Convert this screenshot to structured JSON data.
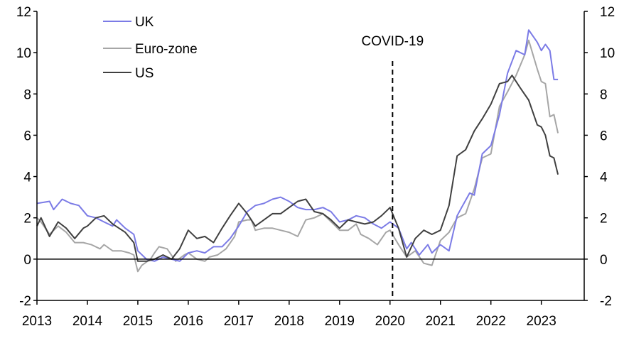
{
  "chart_data": {
    "type": "line",
    "title": "",
    "xlabel": "",
    "ylabel": "",
    "xlim": [
      2013,
      2023.85
    ],
    "ylim": [
      -2,
      12
    ],
    "x_ticks": [
      "2013",
      "2014",
      "2015",
      "2016",
      "2017",
      "2018",
      "2019",
      "2020",
      "2021",
      "2022",
      "2023"
    ],
    "y_ticks_left": [
      "-2",
      "0",
      "2",
      "4",
      "6",
      "8",
      "10",
      "12"
    ],
    "y_ticks_right": [
      "-2",
      "0",
      "2",
      "4",
      "6",
      "8",
      "10",
      "12"
    ],
    "grid": false,
    "legend_position": "top-left",
    "annotation": {
      "label": "COVID-19",
      "x": 2020.05
    },
    "series": [
      {
        "name": "UK",
        "color": "#7b7be6",
        "points": [
          [
            2013.0,
            2.7
          ],
          [
            2013.25,
            2.8
          ],
          [
            2013.33,
            2.4
          ],
          [
            2013.5,
            2.9
          ],
          [
            2013.67,
            2.7
          ],
          [
            2013.83,
            2.6
          ],
          [
            2014.0,
            2.1
          ],
          [
            2014.17,
            2.0
          ],
          [
            2014.33,
            1.8
          ],
          [
            2014.5,
            1.6
          ],
          [
            2014.58,
            1.9
          ],
          [
            2014.75,
            1.5
          ],
          [
            2014.92,
            1.2
          ],
          [
            2015.0,
            0.4
          ],
          [
            2015.17,
            0.0
          ],
          [
            2015.33,
            -0.1
          ],
          [
            2015.5,
            0.1
          ],
          [
            2015.67,
            0.0
          ],
          [
            2015.83,
            -0.1
          ],
          [
            2016.0,
            0.3
          ],
          [
            2016.17,
            0.4
          ],
          [
            2016.33,
            0.3
          ],
          [
            2016.5,
            0.6
          ],
          [
            2016.67,
            0.6
          ],
          [
            2016.83,
            1.0
          ],
          [
            2017.0,
            1.6
          ],
          [
            2017.17,
            2.3
          ],
          [
            2017.33,
            2.6
          ],
          [
            2017.5,
            2.7
          ],
          [
            2017.67,
            2.9
          ],
          [
            2017.83,
            3.0
          ],
          [
            2018.0,
            2.8
          ],
          [
            2018.17,
            2.5
          ],
          [
            2018.33,
            2.4
          ],
          [
            2018.5,
            2.4
          ],
          [
            2018.67,
            2.5
          ],
          [
            2018.83,
            2.3
          ],
          [
            2019.0,
            1.8
          ],
          [
            2019.17,
            1.9
          ],
          [
            2019.33,
            2.1
          ],
          [
            2019.5,
            2.0
          ],
          [
            2019.67,
            1.7
          ],
          [
            2019.83,
            1.5
          ],
          [
            2020.0,
            1.8
          ],
          [
            2020.17,
            1.5
          ],
          [
            2020.33,
            0.5
          ],
          [
            2020.42,
            0.8
          ],
          [
            2020.58,
            0.2
          ],
          [
            2020.75,
            0.7
          ],
          [
            2020.83,
            0.3
          ],
          [
            2021.0,
            0.7
          ],
          [
            2021.17,
            0.4
          ],
          [
            2021.33,
            2.1
          ],
          [
            2021.42,
            2.5
          ],
          [
            2021.58,
            3.2
          ],
          [
            2021.67,
            3.1
          ],
          [
            2021.83,
            5.1
          ],
          [
            2022.0,
            5.5
          ],
          [
            2022.17,
            7.0
          ],
          [
            2022.33,
            9.0
          ],
          [
            2022.5,
            10.1
          ],
          [
            2022.67,
            9.9
          ],
          [
            2022.75,
            11.1
          ],
          [
            2022.92,
            10.5
          ],
          [
            2023.0,
            10.1
          ],
          [
            2023.08,
            10.4
          ],
          [
            2023.17,
            10.1
          ],
          [
            2023.25,
            8.7
          ],
          [
            2023.33,
            8.7
          ]
        ]
      },
      {
        "name": "Euro-zone",
        "color": "#a6a6a6",
        "points": [
          [
            2013.0,
            2.0
          ],
          [
            2013.08,
            1.8
          ],
          [
            2013.25,
            1.2
          ],
          [
            2013.42,
            1.6
          ],
          [
            2013.58,
            1.3
          ],
          [
            2013.75,
            0.8
          ],
          [
            2013.92,
            0.8
          ],
          [
            2014.08,
            0.7
          ],
          [
            2014.25,
            0.5
          ],
          [
            2014.33,
            0.7
          ],
          [
            2014.5,
            0.4
          ],
          [
            2014.67,
            0.4
          ],
          [
            2014.83,
            0.3
          ],
          [
            2014.92,
            0.2
          ],
          [
            2015.0,
            -0.6
          ],
          [
            2015.08,
            -0.3
          ],
          [
            2015.25,
            0.0
          ],
          [
            2015.33,
            0.3
          ],
          [
            2015.42,
            0.6
          ],
          [
            2015.58,
            0.5
          ],
          [
            2015.75,
            -0.1
          ],
          [
            2015.92,
            0.2
          ],
          [
            2016.0,
            0.3
          ],
          [
            2016.17,
            0.0
          ],
          [
            2016.33,
            -0.1
          ],
          [
            2016.42,
            0.1
          ],
          [
            2016.58,
            0.2
          ],
          [
            2016.75,
            0.5
          ],
          [
            2016.92,
            1.1
          ],
          [
            2017.0,
            1.8
          ],
          [
            2017.17,
            1.9
          ],
          [
            2017.25,
            1.9
          ],
          [
            2017.33,
            1.4
          ],
          [
            2017.5,
            1.5
          ],
          [
            2017.67,
            1.5
          ],
          [
            2017.83,
            1.4
          ],
          [
            2018.0,
            1.3
          ],
          [
            2018.17,
            1.1
          ],
          [
            2018.33,
            1.9
          ],
          [
            2018.5,
            2.0
          ],
          [
            2018.67,
            2.2
          ],
          [
            2018.75,
            2.0
          ],
          [
            2018.92,
            1.6
          ],
          [
            2019.0,
            1.4
          ],
          [
            2019.17,
            1.4
          ],
          [
            2019.33,
            1.7
          ],
          [
            2019.42,
            1.2
          ],
          [
            2019.58,
            1.0
          ],
          [
            2019.75,
            0.7
          ],
          [
            2019.92,
            1.3
          ],
          [
            2020.0,
            1.4
          ],
          [
            2020.17,
            0.7
          ],
          [
            2020.33,
            0.1
          ],
          [
            2020.5,
            0.4
          ],
          [
            2020.67,
            -0.2
          ],
          [
            2020.83,
            -0.3
          ],
          [
            2021.0,
            0.9
          ],
          [
            2021.17,
            1.3
          ],
          [
            2021.33,
            2.0
          ],
          [
            2021.5,
            2.2
          ],
          [
            2021.67,
            3.4
          ],
          [
            2021.83,
            4.9
          ],
          [
            2022.0,
            5.1
          ],
          [
            2022.17,
            7.4
          ],
          [
            2022.33,
            8.1
          ],
          [
            2022.5,
            8.9
          ],
          [
            2022.67,
            9.9
          ],
          [
            2022.75,
            10.6
          ],
          [
            2022.92,
            9.2
          ],
          [
            2023.0,
            8.6
          ],
          [
            2023.08,
            8.5
          ],
          [
            2023.17,
            6.9
          ],
          [
            2023.25,
            7.0
          ],
          [
            2023.33,
            6.1
          ]
        ]
      },
      {
        "name": "US",
        "color": "#404040",
        "points": [
          [
            2013.0,
            1.6
          ],
          [
            2013.08,
            2.0
          ],
          [
            2013.25,
            1.1
          ],
          [
            2013.42,
            1.8
          ],
          [
            2013.58,
            1.5
          ],
          [
            2013.75,
            1.0
          ],
          [
            2013.92,
            1.5
          ],
          [
            2014.0,
            1.6
          ],
          [
            2014.17,
            2.0
          ],
          [
            2014.33,
            2.1
          ],
          [
            2014.5,
            1.7
          ],
          [
            2014.75,
            1.3
          ],
          [
            2014.92,
            0.8
          ],
          [
            2015.0,
            -0.1
          ],
          [
            2015.17,
            -0.1
          ],
          [
            2015.33,
            0.0
          ],
          [
            2015.5,
            0.2
          ],
          [
            2015.67,
            0.0
          ],
          [
            2015.83,
            0.5
          ],
          [
            2016.0,
            1.4
          ],
          [
            2016.17,
            1.0
          ],
          [
            2016.33,
            1.1
          ],
          [
            2016.5,
            0.8
          ],
          [
            2016.67,
            1.5
          ],
          [
            2016.83,
            2.1
          ],
          [
            2017.0,
            2.7
          ],
          [
            2017.17,
            2.2
          ],
          [
            2017.33,
            1.6
          ],
          [
            2017.5,
            1.9
          ],
          [
            2017.67,
            2.2
          ],
          [
            2017.83,
            2.2
          ],
          [
            2018.0,
            2.5
          ],
          [
            2018.17,
            2.8
          ],
          [
            2018.33,
            2.9
          ],
          [
            2018.5,
            2.3
          ],
          [
            2018.67,
            2.2
          ],
          [
            2018.83,
            1.9
          ],
          [
            2019.0,
            1.5
          ],
          [
            2019.17,
            1.9
          ],
          [
            2019.33,
            1.8
          ],
          [
            2019.5,
            1.7
          ],
          [
            2019.67,
            1.8
          ],
          [
            2019.83,
            2.1
          ],
          [
            2020.0,
            2.5
          ],
          [
            2020.17,
            1.5
          ],
          [
            2020.33,
            0.1
          ],
          [
            2020.5,
            1.0
          ],
          [
            2020.67,
            1.4
          ],
          [
            2020.83,
            1.2
          ],
          [
            2021.0,
            1.4
          ],
          [
            2021.17,
            2.6
          ],
          [
            2021.33,
            5.0
          ],
          [
            2021.5,
            5.3
          ],
          [
            2021.67,
            6.2
          ],
          [
            2021.83,
            6.8
          ],
          [
            2022.0,
            7.5
          ],
          [
            2022.17,
            8.5
          ],
          [
            2022.33,
            8.6
          ],
          [
            2022.42,
            8.9
          ],
          [
            2022.58,
            8.3
          ],
          [
            2022.75,
            7.7
          ],
          [
            2022.92,
            6.5
          ],
          [
            2023.0,
            6.4
          ],
          [
            2023.08,
            6.0
          ],
          [
            2023.17,
            5.0
          ],
          [
            2023.25,
            4.9
          ],
          [
            2023.33,
            4.1
          ]
        ]
      }
    ]
  }
}
